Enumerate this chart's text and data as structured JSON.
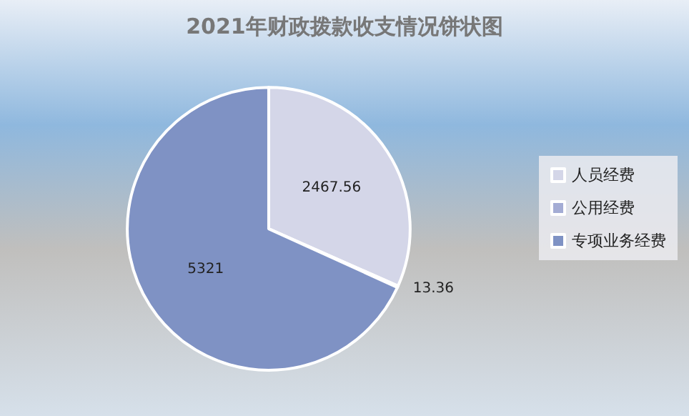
{
  "chart_data": {
    "type": "pie",
    "title": "2021年财政拨款收支情况饼状图",
    "categories": [
      "人员经费",
      "公用经费",
      "专项业务经费"
    ],
    "values": [
      2467.56,
      13.36,
      5321
    ],
    "colors": [
      "#d4d6e8",
      "#a4acd4",
      "#7f92c4"
    ],
    "data_labels": true,
    "legend": "right"
  }
}
